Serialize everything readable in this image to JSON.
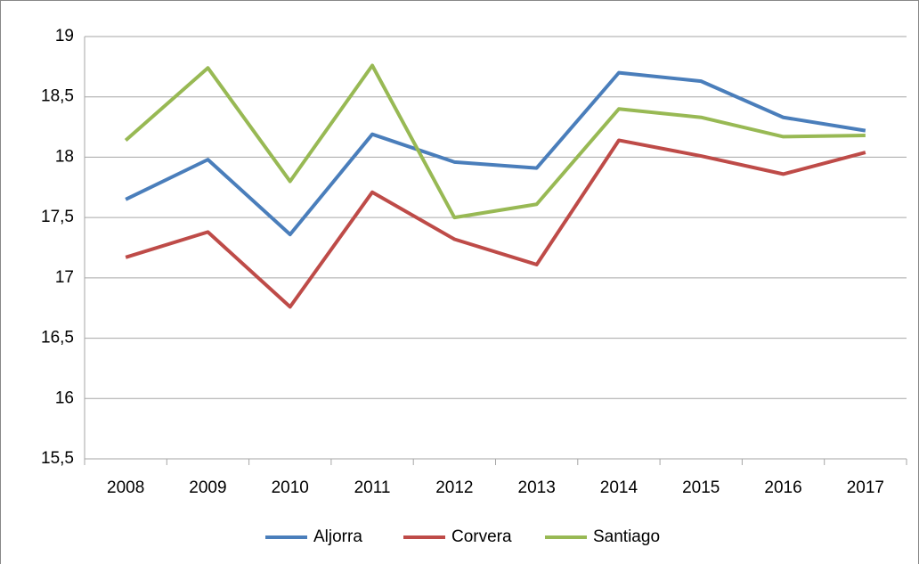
{
  "chart_data": {
    "type": "line",
    "categories": [
      "2008",
      "2009",
      "2010",
      "2011",
      "2012",
      "2013",
      "2014",
      "2015",
      "2016",
      "2017"
    ],
    "series": [
      {
        "name": "Aljorra",
        "color": "#4a7ebb",
        "values": [
          17.65,
          17.98,
          17.36,
          18.19,
          17.96,
          17.91,
          18.7,
          18.63,
          18.33,
          18.22
        ]
      },
      {
        "name": "Corvera",
        "color": "#be4b48",
        "values": [
          17.17,
          17.38,
          16.76,
          17.71,
          17.32,
          17.11,
          18.14,
          18.01,
          17.86,
          18.04
        ]
      },
      {
        "name": "Santiago",
        "color": "#98b954",
        "values": [
          18.14,
          18.74,
          17.8,
          18.76,
          17.5,
          17.61,
          18.4,
          18.33,
          18.17,
          18.18
        ]
      }
    ],
    "ylim": [
      15.5,
      19
    ],
    "yticks": [
      {
        "value": 15.5,
        "label": "15,5"
      },
      16,
      {
        "value": 16.5,
        "label": "16,5"
      },
      17,
      {
        "value": 17.5,
        "label": "17,5"
      },
      18,
      {
        "value": 18.5,
        "label": "18,5"
      },
      19
    ],
    "grid": true,
    "legend": "bottom"
  }
}
